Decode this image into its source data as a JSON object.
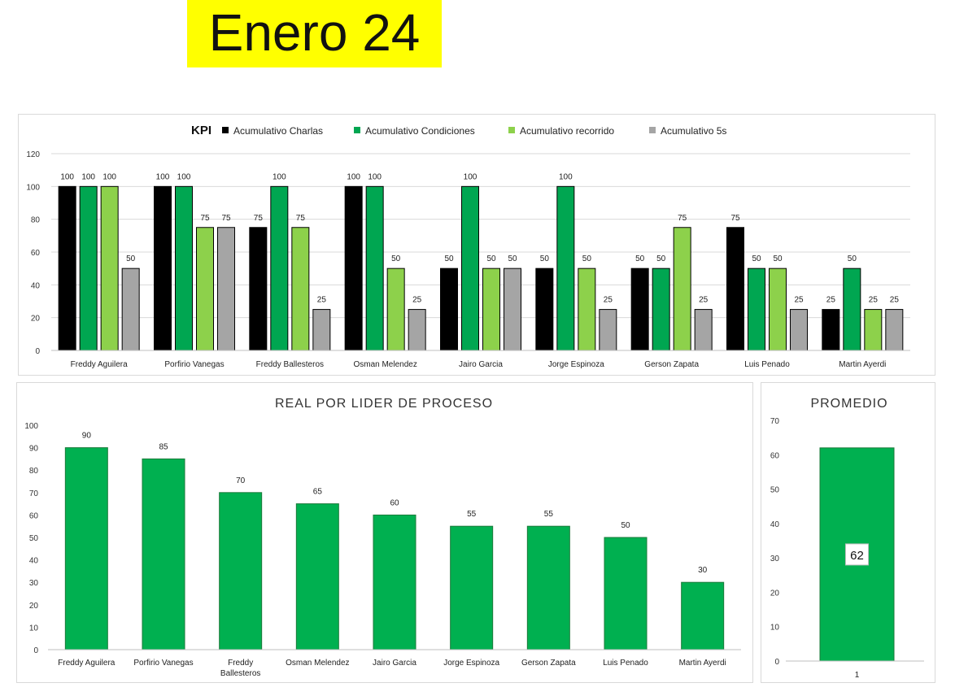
{
  "page": {
    "title": "Enero 24"
  },
  "colors": {
    "charlas": "#000000",
    "condiciones": "#00a651",
    "recorrido": "#8dd14b",
    "cinco_s": "#a5a5a5",
    "bar": "#00b050",
    "grid": "#d9d9d9",
    "title_bg": "#ffff00"
  },
  "chart_data": [
    {
      "type": "bar",
      "title": "KPI",
      "legend_position": "top",
      "categories": [
        "Freddy Aguilera",
        "Porfirio Vanegas",
        "Freddy Ballesteros",
        "Osman Melendez",
        "Jairo Garcia",
        "Jorge Espinoza",
        "Gerson Zapata",
        "Luis Penado",
        "Martin Ayerdi"
      ],
      "series": [
        {
          "name": "Acumulativo Charlas",
          "color": "#000000",
          "values": [
            100,
            100,
            75,
            100,
            50,
            50,
            50,
            75,
            25
          ]
        },
        {
          "name": "Acumulativo Condiciones",
          "color": "#00a651",
          "values": [
            100,
            100,
            100,
            100,
            100,
            100,
            50,
            50,
            50
          ]
        },
        {
          "name": "Acumulativo recorrido",
          "color": "#8dd14b",
          "values": [
            100,
            75,
            75,
            50,
            50,
            50,
            75,
            50,
            25
          ]
        },
        {
          "name": "Acumulativo 5s",
          "color": "#a5a5a5",
          "values": [
            50,
            75,
            25,
            25,
            50,
            25,
            25,
            25,
            25
          ]
        }
      ],
      "ylim": [
        0,
        120
      ],
      "yticks": [
        0,
        20,
        40,
        60,
        80,
        100,
        120
      ],
      "grid": true
    },
    {
      "type": "bar",
      "title": "REAL POR LIDER DE PROCESO",
      "categories": [
        "Freddy Aguilera",
        "Porfirio Vanegas",
        "Freddy Ballesteros",
        "Osman Melendez",
        "Jairo Garcia",
        "Jorge Espinoza",
        "Gerson Zapata",
        "Luis Penado",
        "Martin Ayerdi"
      ],
      "values": [
        90,
        85,
        70,
        65,
        60,
        55,
        55,
        50,
        30
      ],
      "ylim": [
        0,
        100
      ],
      "yticks": [
        0,
        10,
        20,
        30,
        40,
        50,
        60,
        70,
        80,
        90,
        100
      ],
      "grid": false
    },
    {
      "type": "bar",
      "title": "PROMEDIO",
      "categories": [
        "1"
      ],
      "values": [
        62
      ],
      "ylim": [
        0,
        70
      ],
      "yticks": [
        0,
        10,
        20,
        30,
        40,
        50,
        60,
        70
      ],
      "grid": false
    }
  ]
}
